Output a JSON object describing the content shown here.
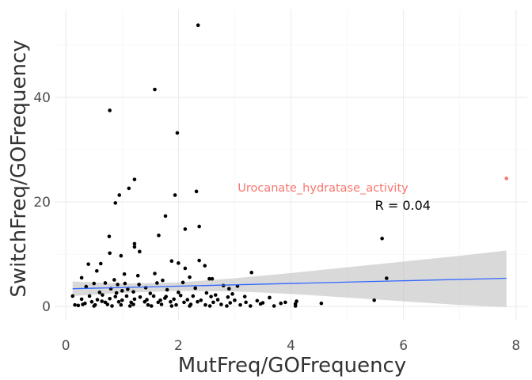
{
  "chart_data": {
    "type": "scatter",
    "xlabel": "MutFreq/GOFrequency",
    "ylabel": "SwitchFreq/GOFrequency",
    "xlim": [
      -0.2,
      8.2
    ],
    "ylim": [
      -2.7,
      56.8
    ],
    "x_ticks": [
      0,
      2,
      4,
      6,
      8
    ],
    "y_ticks": [
      0,
      20,
      40
    ],
    "grid": true,
    "point_color": "#000000",
    "highlight_color": "#f8766d",
    "fit_color": "#3366ff",
    "band_color": "#bfbfbf",
    "points": [
      [
        2.35,
        53.8
      ],
      [
        0.78,
        37.5
      ],
      [
        1.58,
        41.5
      ],
      [
        1.98,
        33.2
      ],
      [
        1.22,
        24.3
      ],
      [
        1.12,
        22.6
      ],
      [
        0.95,
        21.3
      ],
      [
        0.88,
        19.8
      ],
      [
        2.32,
        22.0
      ],
      [
        1.94,
        21.3
      ],
      [
        1.77,
        17.3
      ],
      [
        2.37,
        15.3
      ],
      [
        2.12,
        14.8
      ],
      [
        1.65,
        13.6
      ],
      [
        0.77,
        13.4
      ],
      [
        1.22,
        12.0
      ],
      [
        1.22,
        11.4
      ],
      [
        5.62,
        13.0
      ],
      [
        0.78,
        10.2
      ],
      [
        0.98,
        9.7
      ],
      [
        1.31,
        10.5
      ],
      [
        0.4,
        8.1
      ],
      [
        0.62,
        8.2
      ],
      [
        1.88,
        8.7
      ],
      [
        2.0,
        8.3
      ],
      [
        2.12,
        7.3
      ],
      [
        2.37,
        8.8
      ],
      [
        2.47,
        7.8
      ],
      [
        1.04,
        6.2
      ],
      [
        0.55,
        6.8
      ],
      [
        3.3,
        6.5
      ],
      [
        0.28,
        5.5
      ],
      [
        1.58,
        6.3
      ],
      [
        2.55,
        5.3
      ],
      [
        2.6,
        5.3
      ],
      [
        5.7,
        5.4
      ],
      [
        0.5,
        4.4
      ],
      [
        0.7,
        4.5
      ],
      [
        0.92,
        4.2
      ],
      [
        1.05,
        4.4
      ],
      [
        1.3,
        4.2
      ],
      [
        1.62,
        4.5
      ],
      [
        2.08,
        4.6
      ],
      [
        2.8,
        4.0
      ],
      [
        0.36,
        3.8
      ],
      [
        0.8,
        3.4
      ],
      [
        1.1,
        3.3
      ],
      [
        1.42,
        3.6
      ],
      [
        1.8,
        3.2
      ],
      [
        2.3,
        3.5
      ],
      [
        2.9,
        3.4
      ],
      [
        3.05,
        3.9
      ],
      [
        0.6,
        2.7
      ],
      [
        0.9,
        2.6
      ],
      [
        1.2,
        2.8
      ],
      [
        1.5,
        2.5
      ],
      [
        2.0,
        2.7
      ],
      [
        2.5,
        2.6
      ],
      [
        0.12,
        2.0
      ],
      [
        0.42,
        2.0
      ],
      [
        0.65,
        2.2
      ],
      [
        0.88,
        1.9
      ],
      [
        1.08,
        2.0
      ],
      [
        1.32,
        1.8
      ],
      [
        1.56,
        2.0
      ],
      [
        1.78,
        1.9
      ],
      [
        2.04,
        2.1
      ],
      [
        2.26,
        2.0
      ],
      [
        2.58,
        1.9
      ],
      [
        2.88,
        1.8
      ],
      [
        3.18,
        1.9
      ],
      [
        3.62,
        1.7
      ],
      [
        0.28,
        1.4
      ],
      [
        0.56,
        1.3
      ],
      [
        0.78,
        1.5
      ],
      [
        1.0,
        1.2
      ],
      [
        1.22,
        1.4
      ],
      [
        1.44,
        1.3
      ],
      [
        1.68,
        1.2
      ],
      [
        1.92,
        1.4
      ],
      [
        2.16,
        1.3
      ],
      [
        2.4,
        1.2
      ],
      [
        2.7,
        1.3
      ],
      [
        3.0,
        1.2
      ],
      [
        3.4,
        1.1
      ],
      [
        5.48,
        1.2
      ],
      [
        0.46,
        0.9
      ],
      [
        0.7,
        0.8
      ],
      [
        0.94,
        0.9
      ],
      [
        1.16,
        0.8
      ],
      [
        1.4,
        0.9
      ],
      [
        1.64,
        0.8
      ],
      [
        1.86,
        0.9
      ],
      [
        2.1,
        0.8
      ],
      [
        2.34,
        0.9
      ],
      [
        2.62,
        0.8
      ],
      [
        2.92,
        0.7
      ],
      [
        3.2,
        0.8
      ],
      [
        3.5,
        0.7
      ],
      [
        0.16,
        0.3
      ],
      [
        0.3,
        0.4
      ],
      [
        0.52,
        0.3
      ],
      [
        0.74,
        0.4
      ],
      [
        0.98,
        0.3
      ],
      [
        1.2,
        0.4
      ],
      [
        1.46,
        0.3
      ],
      [
        1.7,
        0.4
      ],
      [
        1.96,
        0.3
      ],
      [
        2.22,
        0.4
      ],
      [
        2.48,
        0.3
      ],
      [
        2.76,
        0.4
      ],
      [
        3.1,
        0.3
      ],
      [
        3.46,
        0.5
      ],
      [
        3.82,
        0.6
      ],
      [
        4.08,
        0.5
      ],
      [
        4.54,
        0.6
      ],
      [
        3.7,
        0.1
      ],
      [
        4.08,
        0.1
      ],
      [
        3.9,
        0.8
      ],
      [
        4.1,
        1.0
      ],
      [
        0.22,
        0.2
      ],
      [
        0.5,
        0.1
      ],
      [
        0.82,
        0.1
      ],
      [
        1.14,
        0.1
      ],
      [
        1.52,
        0.1
      ],
      [
        1.88,
        0.1
      ],
      [
        2.2,
        0.1
      ],
      [
        2.56,
        0.1
      ],
      [
        2.86,
        0.1
      ],
      [
        3.28,
        0.1
      ],
      [
        0.64,
        1.0
      ],
      [
        1.76,
        1.6
      ],
      [
        2.96,
        2.4
      ],
      [
        1.0,
        3.0
      ],
      [
        0.34,
        0.6
      ],
      [
        2.2,
        5.6
      ],
      [
        1.72,
        5.0
      ],
      [
        1.28,
        5.9
      ],
      [
        0.86,
        5.1
      ],
      [
        2.66,
        2.2
      ]
    ],
    "highlight_points": [
      {
        "x": 7.83,
        "y": 24.5,
        "label": "Urocanate_hydratase_activity"
      }
    ],
    "fit_line": {
      "x0": 0.12,
      "y0": 3.4,
      "x1": 7.83,
      "y1": 5.4
    },
    "confidence_band": {
      "x": [
        0.12,
        1.0,
        2.0,
        3.0,
        4.0,
        5.0,
        6.0,
        7.0,
        7.83
      ],
      "upper": [
        4.8,
        4.4,
        4.6,
        5.4,
        6.4,
        7.5,
        8.6,
        9.7,
        10.7
      ],
      "lower": [
        2.0,
        2.6,
        3.0,
        2.9,
        2.4,
        1.7,
        1.0,
        0.3,
        -0.1
      ]
    },
    "annotation": {
      "text": "R = 0.04",
      "x": 6.0,
      "y": 19.4
    }
  }
}
